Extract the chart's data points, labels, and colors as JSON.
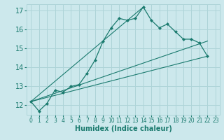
{
  "title": "",
  "xlabel": "Humidex (Indice chaleur)",
  "bg_color": "#cce8ec",
  "grid_color": "#aed4d8",
  "line_color": "#1a7a6e",
  "xlim": [
    -0.5,
    23.5
  ],
  "ylim": [
    11.5,
    17.35
  ],
  "yticks": [
    12,
    13,
    14,
    15,
    16,
    17
  ],
  "xticks": [
    0,
    1,
    2,
    3,
    4,
    5,
    6,
    7,
    8,
    9,
    10,
    11,
    12,
    13,
    14,
    15,
    16,
    17,
    18,
    19,
    20,
    21,
    22,
    23
  ],
  "series1_x": [
    0,
    1,
    2,
    3,
    4,
    5,
    6,
    7,
    8,
    9,
    10,
    11,
    12,
    13,
    14,
    15,
    16,
    17,
    18,
    19,
    20,
    21,
    22
  ],
  "series1_y": [
    12.2,
    11.7,
    12.1,
    12.8,
    12.7,
    13.0,
    13.1,
    13.7,
    14.4,
    15.4,
    16.1,
    16.6,
    16.5,
    16.6,
    17.2,
    16.5,
    16.1,
    16.3,
    15.9,
    15.5,
    15.5,
    15.3,
    14.6
  ],
  "line1_x": [
    0,
    22
  ],
  "line1_y": [
    12.2,
    14.6
  ],
  "line2_x": [
    0,
    14
  ],
  "line2_y": [
    12.2,
    17.2
  ],
  "line3_x": [
    0,
    22
  ],
  "line3_y": [
    12.2,
    15.4
  ]
}
